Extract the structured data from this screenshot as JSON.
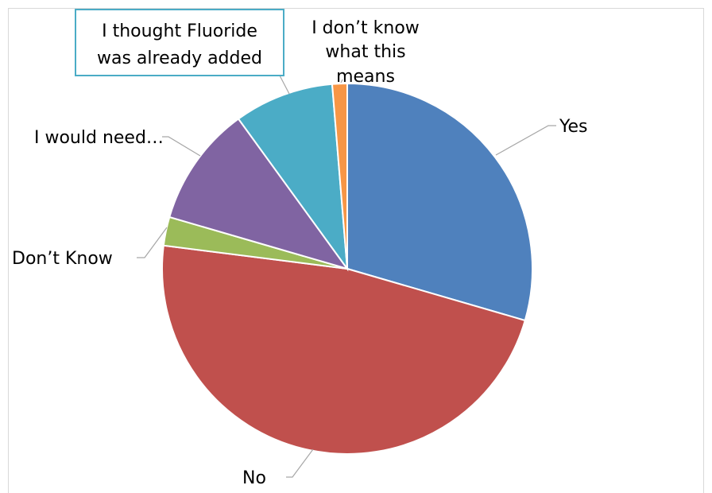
{
  "chart_data": {
    "type": "pie",
    "title": "",
    "categories": [
      "Yes",
      "No",
      "Don’t Know",
      "I would need…",
      "I thought Fluoride was already added",
      "I don’t know what this means"
    ],
    "values": [
      29.5,
      47.5,
      2.5,
      10.5,
      8.7,
      1.3
    ],
    "unit": "percent",
    "colors": [
      "#4f81bd",
      "#c0504d",
      "#9bbb59",
      "#8064a2",
      "#4bacc6",
      "#f79646"
    ],
    "legend": "none",
    "labels": {
      "yes": "Yes",
      "no": "No",
      "dont_know": "Don’t Know",
      "would_need": "I would need…",
      "thought_line1": "I thought Fluoride",
      "thought_line2": "was already added",
      "dk_line1": "I don’t know",
      "dk_line2": "what this",
      "dk_line3": "means"
    }
  }
}
